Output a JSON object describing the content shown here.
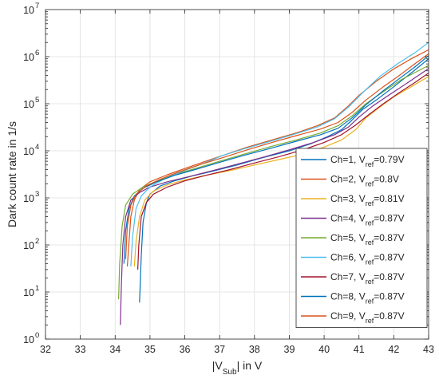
{
  "chart_data": {
    "type": "line",
    "title": "",
    "xlabel": "|V",
    "xlabel_sub": "Sub",
    "xlabel_suffix": "| in V",
    "ylabel": "Dark count rate in 1/s",
    "xlim": [
      32,
      43
    ],
    "ylim": [
      1,
      10000000
    ],
    "yscale": "log",
    "x_ticks": [
      32,
      33,
      34,
      35,
      36,
      37,
      38,
      39,
      40,
      41,
      42,
      43
    ],
    "x_tick_labels": [
      "32",
      "33",
      "34",
      "35",
      "36",
      "37",
      "38",
      "39",
      "40",
      "41",
      "42",
      "43"
    ],
    "y_ticks": [
      1,
      10,
      100,
      1000,
      10000,
      100000,
      1000000,
      10000000
    ],
    "y_tick_labels": [
      {
        "base": "10",
        "exp": "0"
      },
      {
        "base": "10",
        "exp": "1"
      },
      {
        "base": "10",
        "exp": "2"
      },
      {
        "base": "10",
        "exp": "3"
      },
      {
        "base": "10",
        "exp": "4"
      },
      {
        "base": "10",
        "exp": "5"
      },
      {
        "base": "10",
        "exp": "6"
      },
      {
        "base": "10",
        "exp": "7"
      }
    ],
    "grid": true,
    "legend_position": "bottom-right",
    "series": [
      {
        "name": "Ch=1, V",
        "sub": "ref",
        "suffix": "=0.79V",
        "color": "#0072BD",
        "points": [
          [
            34.7,
            6
          ],
          [
            34.72,
            15
          ],
          [
            34.75,
            60
          ],
          [
            34.8,
            300
          ],
          [
            34.9,
            800
          ],
          [
            35.0,
            1200
          ],
          [
            35.3,
            1800
          ],
          [
            35.7,
            2300
          ],
          [
            36.2,
            2900
          ],
          [
            36.8,
            3700
          ],
          [
            37.5,
            5000
          ],
          [
            38.2,
            7000
          ],
          [
            39.0,
            10000
          ],
          [
            39.6,
            14000
          ],
          [
            40.1,
            20000
          ],
          [
            40.5,
            28000
          ],
          [
            40.8,
            45000
          ],
          [
            41.1,
            75000
          ],
          [
            41.5,
            120000
          ],
          [
            42.0,
            230000
          ],
          [
            42.5,
            450000
          ],
          [
            43.0,
            900000
          ]
        ]
      },
      {
        "name": "Ch=2, V",
        "sub": "ref",
        "suffix": "=0.8V",
        "color": "#D95319",
        "points": [
          [
            34.35,
            35
          ],
          [
            34.4,
            120
          ],
          [
            34.45,
            400
          ],
          [
            34.55,
            900
          ],
          [
            34.7,
            1500
          ],
          [
            35.0,
            2200
          ],
          [
            35.5,
            3100
          ],
          [
            36.0,
            4200
          ],
          [
            36.6,
            6000
          ],
          [
            37.2,
            8500
          ],
          [
            37.8,
            12000
          ],
          [
            38.5,
            17000
          ],
          [
            39.2,
            24000
          ],
          [
            39.8,
            34000
          ],
          [
            40.3,
            50000
          ],
          [
            40.7,
            90000
          ],
          [
            41.0,
            150000
          ],
          [
            41.5,
            300000
          ],
          [
            42.0,
            550000
          ],
          [
            42.5,
            900000
          ],
          [
            43.0,
            1400000
          ]
        ]
      },
      {
        "name": "Ch=3, V",
        "sub": "ref",
        "suffix": "=0.81V",
        "color": "#EDB120",
        "points": [
          [
            34.55,
            35
          ],
          [
            34.6,
            120
          ],
          [
            34.7,
            400
          ],
          [
            34.85,
            900
          ],
          [
            35.1,
            1400
          ],
          [
            35.5,
            1900
          ],
          [
            36.0,
            2400
          ],
          [
            36.6,
            3000
          ],
          [
            37.3,
            3800
          ],
          [
            38.0,
            5000
          ],
          [
            38.7,
            6500
          ],
          [
            39.4,
            8500
          ],
          [
            40.0,
            12000
          ],
          [
            40.5,
            17000
          ],
          [
            40.9,
            28000
          ],
          [
            41.2,
            50000
          ],
          [
            41.6,
            85000
          ],
          [
            42.0,
            140000
          ],
          [
            42.5,
            230000
          ],
          [
            43.0,
            380000
          ]
        ]
      },
      {
        "name": "Ch=4, V",
        "sub": "ref",
        "suffix": "=0.87V",
        "color": "#7E2F8E",
        "points": [
          [
            34.15,
            2
          ],
          [
            34.18,
            15
          ],
          [
            34.22,
            100
          ],
          [
            34.3,
            400
          ],
          [
            34.45,
            900
          ],
          [
            34.7,
            1300
          ],
          [
            35.0,
            1700
          ],
          [
            35.5,
            2200
          ],
          [
            36.1,
            2800
          ],
          [
            36.8,
            3800
          ],
          [
            37.5,
            5200
          ],
          [
            38.3,
            7500
          ],
          [
            39.0,
            10500
          ],
          [
            39.7,
            15000
          ],
          [
            40.3,
            22000
          ],
          [
            40.7,
            32000
          ],
          [
            41.0,
            52000
          ],
          [
            41.4,
            90000
          ],
          [
            41.9,
            160000
          ],
          [
            42.4,
            280000
          ],
          [
            43.0,
            560000
          ]
        ]
      },
      {
        "name": "Ch=5, V",
        "sub": "ref",
        "suffix": "=0.87V",
        "color": "#77AC30",
        "points": [
          [
            34.1,
            7
          ],
          [
            34.13,
            40
          ],
          [
            34.2,
            250
          ],
          [
            34.3,
            700
          ],
          [
            34.5,
            1200
          ],
          [
            34.8,
            1700
          ],
          [
            35.2,
            2300
          ],
          [
            35.7,
            3100
          ],
          [
            36.3,
            4200
          ],
          [
            37.0,
            6000
          ],
          [
            37.7,
            8500
          ],
          [
            38.5,
            12500
          ],
          [
            39.2,
            17000
          ],
          [
            39.9,
            24000
          ],
          [
            40.4,
            34000
          ],
          [
            40.8,
            55000
          ],
          [
            41.2,
            100000
          ],
          [
            41.7,
            180000
          ],
          [
            42.2,
            320000
          ],
          [
            43.0,
            650000
          ]
        ]
      },
      {
        "name": "Ch=6, V",
        "sub": "ref",
        "suffix": "=0.87V",
        "color": "#4DBEEE",
        "points": [
          [
            34.45,
            35
          ],
          [
            34.5,
            150
          ],
          [
            34.6,
            600
          ],
          [
            34.75,
            1100
          ],
          [
            35.0,
            1700
          ],
          [
            35.4,
            2500
          ],
          [
            35.9,
            3600
          ],
          [
            36.5,
            5300
          ],
          [
            37.1,
            8000
          ],
          [
            37.7,
            11000
          ],
          [
            38.4,
            15500
          ],
          [
            39.1,
            22000
          ],
          [
            39.8,
            32000
          ],
          [
            40.3,
            48000
          ],
          [
            40.7,
            85000
          ],
          [
            41.1,
            170000
          ],
          [
            41.6,
            380000
          ],
          [
            42.1,
            700000
          ],
          [
            42.6,
            1200000
          ],
          [
            43.0,
            2000000
          ]
        ]
      },
      {
        "name": "Ch=7, V",
        "sub": "ref",
        "suffix": "=0.87V",
        "color": "#A2142F",
        "points": [
          [
            34.65,
            30
          ],
          [
            34.68,
            100
          ],
          [
            34.75,
            400
          ],
          [
            34.9,
            800
          ],
          [
            35.1,
            1200
          ],
          [
            35.5,
            1700
          ],
          [
            36.0,
            2300
          ],
          [
            36.6,
            3000
          ],
          [
            37.3,
            4000
          ],
          [
            38.0,
            5500
          ],
          [
            38.7,
            7500
          ],
          [
            39.4,
            10500
          ],
          [
            40.0,
            15000
          ],
          [
            40.5,
            22000
          ],
          [
            40.9,
            35000
          ],
          [
            41.3,
            60000
          ],
          [
            41.7,
            100000
          ],
          [
            42.2,
            180000
          ],
          [
            42.6,
            280000
          ],
          [
            43.0,
            450000
          ]
        ]
      },
      {
        "name": "Ch=8, V",
        "sub": "ref",
        "suffix": "=0.87V",
        "color": "#0072BD",
        "points": [
          [
            34.25,
            40
          ],
          [
            34.3,
            200
          ],
          [
            34.4,
            600
          ],
          [
            34.55,
            1100
          ],
          [
            34.8,
            1600
          ],
          [
            35.2,
            2200
          ],
          [
            35.7,
            3000
          ],
          [
            36.3,
            4000
          ],
          [
            37.0,
            5700
          ],
          [
            37.7,
            8000
          ],
          [
            38.5,
            11500
          ],
          [
            39.2,
            16000
          ],
          [
            39.9,
            22000
          ],
          [
            40.4,
            30000
          ],
          [
            40.8,
            50000
          ],
          [
            41.2,
            95000
          ],
          [
            41.7,
            190000
          ],
          [
            42.2,
            360000
          ],
          [
            42.6,
            600000
          ],
          [
            43.0,
            1050000
          ]
        ]
      },
      {
        "name": "Ch=9, V",
        "sub": "ref",
        "suffix": "=0.87V",
        "color": "#D95319",
        "points": [
          [
            34.3,
            50
          ],
          [
            34.35,
            250
          ],
          [
            34.45,
            700
          ],
          [
            34.6,
            1200
          ],
          [
            34.9,
            1800
          ],
          [
            35.3,
            2500
          ],
          [
            35.8,
            3500
          ],
          [
            36.4,
            5000
          ],
          [
            37.1,
            7200
          ],
          [
            37.8,
            10500
          ],
          [
            38.5,
            15000
          ],
          [
            39.2,
            21000
          ],
          [
            39.9,
            29000
          ],
          [
            40.4,
            40000
          ],
          [
            40.8,
            65000
          ],
          [
            41.2,
            120000
          ],
          [
            41.7,
            230000
          ],
          [
            42.2,
            420000
          ],
          [
            42.6,
            700000
          ],
          [
            43.0,
            1150000
          ]
        ]
      }
    ]
  }
}
